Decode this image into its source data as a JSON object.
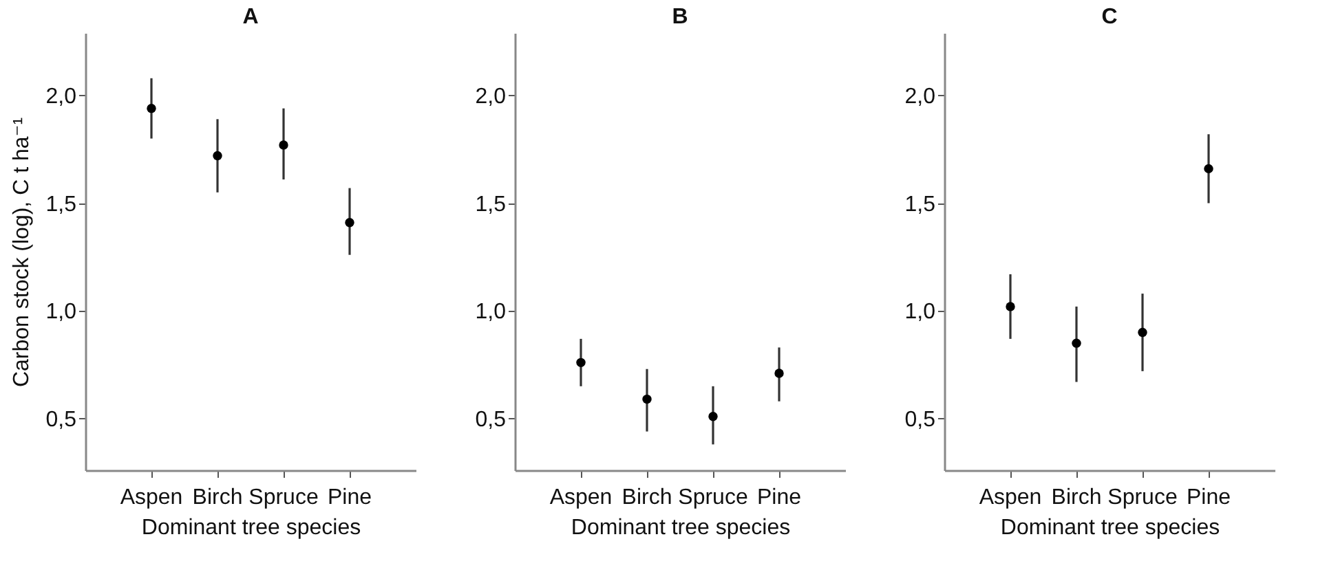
{
  "chart_data": [
    {
      "type": "scatter",
      "title": "A",
      "xlabel": "Dominant tree species",
      "ylabel": "Carbon stock (log), C t ha⁻¹",
      "categories": [
        "Aspen",
        "Birch",
        "Spruce",
        "Pine"
      ],
      "marker": "circle",
      "series": [
        {
          "color": "#000000",
          "values": [
            1.94,
            1.72,
            1.77,
            1.41
          ],
          "errors": [
            [
              1.8,
              2.08
            ],
            [
              1.55,
              1.89
            ],
            [
              1.61,
              1.94
            ],
            [
              1.26,
              1.57
            ]
          ]
        }
      ],
      "ylim": [
        0.26,
        2.29
      ],
      "yticks": [
        {
          "value": 0.5,
          "label": "0,5"
        },
        {
          "value": 1.0,
          "label": "1,0"
        },
        {
          "value": 1.5,
          "label": "1,5"
        },
        {
          "value": 2.0,
          "label": "2,0"
        }
      ]
    },
    {
      "type": "scatter",
      "title": "B",
      "xlabel": "Dominant tree species",
      "categories": [
        "Aspen",
        "Birch",
        "Spruce",
        "Pine"
      ],
      "marker": "circle",
      "series": [
        {
          "color": "#000000",
          "values": [
            0.76,
            0.59,
            0.51,
            0.71
          ],
          "errors": [
            [
              0.65,
              0.87
            ],
            [
              0.44,
              0.73
            ],
            [
              0.38,
              0.65
            ],
            [
              0.58,
              0.83
            ]
          ]
        }
      ],
      "ylim": [
        0.26,
        2.29
      ],
      "yticks": [
        {
          "value": 0.5,
          "label": "0,5"
        },
        {
          "value": 1.0,
          "label": "1,0"
        },
        {
          "value": 1.5,
          "label": "1,5"
        },
        {
          "value": 2.0,
          "label": "2,0"
        }
      ]
    },
    {
      "type": "scatter",
      "title": "C",
      "xlabel": "Dominant tree species",
      "categories": [
        "Aspen",
        "Birch",
        "Spruce",
        "Pine"
      ],
      "marker": "circle",
      "series": [
        {
          "color": "#000000",
          "values": [
            1.02,
            0.85,
            0.9,
            1.66
          ],
          "errors": [
            [
              0.87,
              1.17
            ],
            [
              0.67,
              1.02
            ],
            [
              0.72,
              1.08
            ],
            [
              1.5,
              1.82
            ]
          ]
        }
      ],
      "ylim": [
        0.26,
        2.29
      ],
      "yticks": [
        {
          "value": 0.5,
          "label": "0,5"
        },
        {
          "value": 1.0,
          "label": "1,0"
        },
        {
          "value": 1.5,
          "label": "1,5"
        },
        {
          "value": 2.0,
          "label": "2,0"
        }
      ]
    }
  ]
}
